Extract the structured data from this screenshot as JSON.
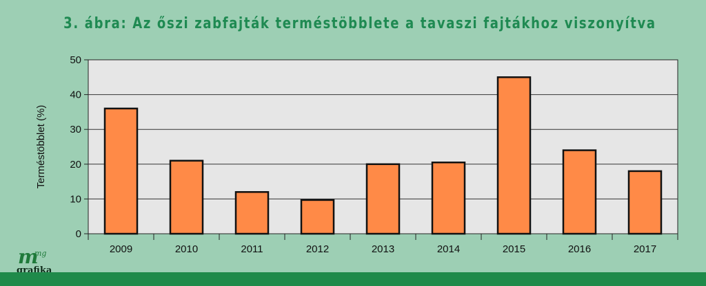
{
  "chart_data": {
    "type": "bar",
    "title": "3. ábra: Az őszi zabfajták terméstöbblete a tavaszi fajtákhoz viszonyítva",
    "xlabel": "",
    "ylabel": "Terméstöbblet (%)",
    "categories": [
      "2009",
      "2010",
      "2011",
      "2012",
      "2013",
      "2014",
      "2015",
      "2016",
      "2017"
    ],
    "values": [
      36,
      21,
      12,
      9.7,
      20,
      20.5,
      45,
      24,
      18
    ],
    "ylim": [
      0,
      50
    ],
    "yticks": [
      0,
      10,
      20,
      30,
      40,
      50
    ],
    "grid": true,
    "legend": "none"
  },
  "colors": {
    "background": "#9dcfb4",
    "plot_background": "#e6e6e6",
    "bar_fill": "#ff8a47",
    "bar_stroke": "#111111",
    "title": "#1f8a52",
    "bottom_bar": "#1f8a4a"
  },
  "logo": {
    "mark": "m",
    "superscript": "mg",
    "word": "grafika"
  }
}
